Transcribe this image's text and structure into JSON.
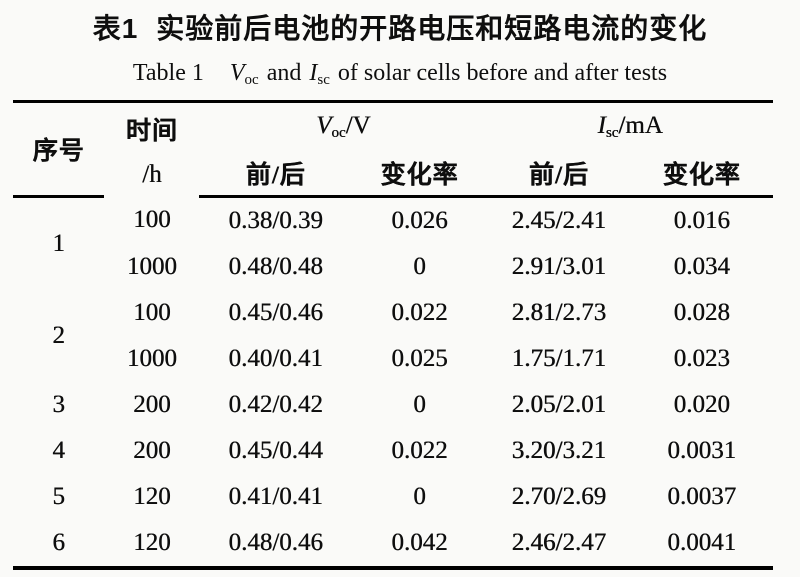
{
  "title": {
    "zh_label": "表1",
    "zh_text": "实验前后电池的开路电压和短路电流的变化"
  },
  "subtitle": {
    "label": "Table 1",
    "v_symbol": "V",
    "v_sub": "oc",
    "and_text": "and",
    "i_symbol": "I",
    "i_sub": "sc",
    "rest": "of solar cells before and after tests"
  },
  "table": {
    "header": {
      "seq": "序号",
      "time_top": "时间",
      "time_unit": "/h",
      "voc_symbol": "V",
      "voc_sub": "oc",
      "voc_unit": "/V",
      "isc_symbol": "I",
      "isc_sub": "sc",
      "isc_unit": "/mA",
      "before_after": "前/后",
      "change_rate": "变化率"
    },
    "rows": [
      {
        "seq": "1",
        "time": "100",
        "v": "0.38/0.39",
        "v_rate": "0.026",
        "i": "2.45/2.41",
        "i_rate": "0.016"
      },
      {
        "time": "1000",
        "v": "0.48/0.48",
        "v_rate": "0",
        "i": "2.91/3.01",
        "i_rate": "0.034"
      },
      {
        "seq": "2",
        "time": "100",
        "v": "0.45/0.46",
        "v_rate": "0.022",
        "i": "2.81/2.73",
        "i_rate": "0.028"
      },
      {
        "time": "1000",
        "v": "0.40/0.41",
        "v_rate": "0.025",
        "i": "1.75/1.71",
        "i_rate": "0.023"
      },
      {
        "seq": "3",
        "time": "200",
        "v": "0.42/0.42",
        "v_rate": "0",
        "i": "2.05/2.01",
        "i_rate": "0.020"
      },
      {
        "seq": "4",
        "time": "200",
        "v": "0.45/0.44",
        "v_rate": "0.022",
        "i": "3.20/3.21",
        "i_rate": "0.0031"
      },
      {
        "seq": "5",
        "time": "120",
        "v": "0.41/0.41",
        "v_rate": "0",
        "i": "2.70/2.69",
        "i_rate": "0.0037"
      },
      {
        "seq": "6",
        "time": "120",
        "v": "0.48/0.46",
        "v_rate": "0.042",
        "i": "2.46/2.47",
        "i_rate": "0.0041"
      }
    ]
  }
}
